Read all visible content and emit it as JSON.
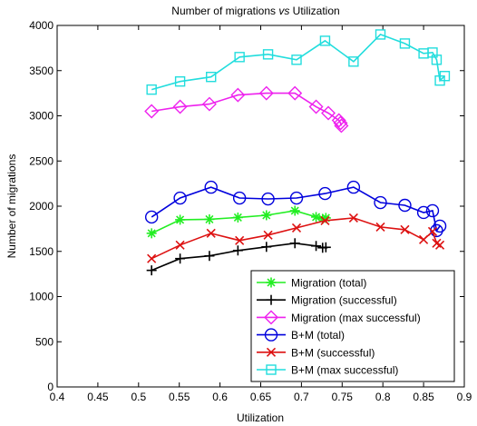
{
  "chart_data": {
    "type": "line",
    "title_parts": [
      "Number of migrations ",
      "vs",
      " Utilization"
    ],
    "xlabel": "Utilization",
    "ylabel": "Number of migrations",
    "xlim": [
      0.4,
      0.9
    ],
    "ylim": [
      0,
      4000
    ],
    "xticks": [
      "0.4",
      "0.45",
      "0.5",
      "0.55",
      "0.6",
      "0.65",
      "0.7",
      "0.75",
      "0.8",
      "0.85",
      "0.9"
    ],
    "yticks": [
      "0",
      "500",
      "1000",
      "1500",
      "2000",
      "2500",
      "3000",
      "3500",
      "4000"
    ],
    "grid": false,
    "legend_position": "bottom-right",
    "series": [
      {
        "name": "Migration (total)",
        "color": "#22ee22",
        "marker": "asterisk",
        "x": [
          0.516,
          0.551,
          0.587,
          0.622,
          0.657,
          0.692,
          0.718,
          0.726,
          0.73
        ],
        "y": [
          1700,
          1850,
          1855,
          1875,
          1900,
          1950,
          1880,
          1860,
          1870
        ]
      },
      {
        "name": "Migration (successful)",
        "color": "#000000",
        "marker": "plus",
        "x": [
          0.516,
          0.551,
          0.587,
          0.622,
          0.657,
          0.692,
          0.718,
          0.726,
          0.73
        ],
        "y": [
          1290,
          1420,
          1450,
          1510,
          1550,
          1590,
          1560,
          1540,
          1545
        ]
      },
      {
        "name": "Migration (max successful)",
        "color": "#ee22ee",
        "marker": "diamond",
        "x": [
          0.516,
          0.551,
          0.587,
          0.622,
          0.657,
          0.692,
          0.718,
          0.733,
          0.746,
          0.748,
          0.749
        ],
        "y": [
          3050,
          3100,
          3130,
          3230,
          3250,
          3250,
          3100,
          3030,
          2950,
          2920,
          2890
        ]
      },
      {
        "name": "B+M (total)",
        "color": "#0000dd",
        "marker": "circle",
        "x": [
          0.516,
          0.551,
          0.589,
          0.624,
          0.659,
          0.694,
          0.729,
          0.764,
          0.797,
          0.827,
          0.85,
          0.861,
          0.866,
          0.87
        ],
        "y": [
          1880,
          2090,
          2210,
          2090,
          2080,
          2090,
          2140,
          2210,
          2040,
          2010,
          1930,
          1950,
          1730,
          1780
        ]
      },
      {
        "name": "B+M (successful)",
        "color": "#dd1111",
        "marker": "x",
        "x": [
          0.516,
          0.551,
          0.589,
          0.624,
          0.659,
          0.694,
          0.729,
          0.764,
          0.797,
          0.827,
          0.85,
          0.861,
          0.866,
          0.87
        ],
        "y": [
          1420,
          1570,
          1700,
          1620,
          1680,
          1760,
          1840,
          1870,
          1770,
          1740,
          1630,
          1720,
          1590,
          1570
        ]
      },
      {
        "name": "B+M (max successful)",
        "color": "#22dddd",
        "marker": "square",
        "x": [
          0.516,
          0.551,
          0.589,
          0.624,
          0.659,
          0.694,
          0.729,
          0.764,
          0.797,
          0.827,
          0.85,
          0.861,
          0.866,
          0.87,
          0.876
        ],
        "y": [
          3290,
          3380,
          3430,
          3650,
          3680,
          3620,
          3830,
          3600,
          3900,
          3800,
          3690,
          3700,
          3620,
          3390,
          3440
        ]
      }
    ]
  }
}
